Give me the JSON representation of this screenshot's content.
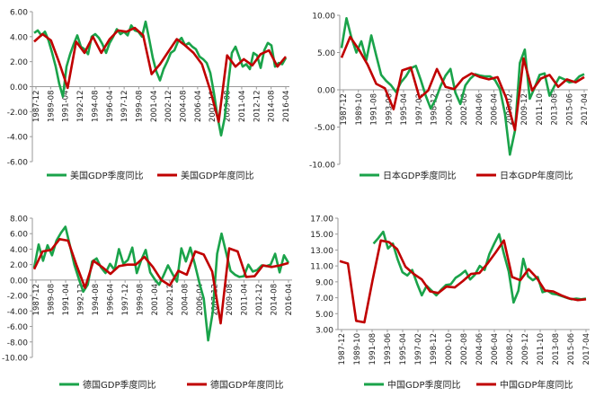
{
  "colors": {
    "quarterly": "#1aa34a",
    "annual": "#c00000",
    "axis": "#999999",
    "text": "#222222"
  },
  "chart_data": [
    {
      "type": "line",
      "ylim": [
        -6,
        6
      ],
      "yticks": [
        "6.00",
        "4.00",
        "2.00",
        "0.00",
        "-2.00",
        "-4.00",
        "-6.00"
      ],
      "xticks": [
        "1987-12",
        "1989-08",
        "1991-04",
        "1992-12",
        "1994-08",
        "1996-04",
        "1997-12",
        "1999-08",
        "2001-04",
        "2002-12",
        "2004-08",
        "2006-04",
        "2007-12",
        "2009-08",
        "2011-04",
        "2012-12",
        "2014-08",
        "2016-04"
      ],
      "series": [
        {
          "name": "美国GDP季度同比",
          "values": [
            4.3,
            4.5,
            4.1,
            4.4,
            3.7,
            2.7,
            1.6,
            0.2,
            -0.8,
            1.6,
            2.6,
            3.4,
            4.1,
            3.2,
            3.0,
            2.6,
            4.0,
            4.2,
            3.9,
            3.4,
            2.7,
            3.5,
            4.0,
            4.6,
            4.2,
            4.4,
            4.1,
            4.9,
            4.5,
            4.4,
            4.0,
            5.2,
            3.8,
            2.3,
            1.2,
            0.5,
            1.4,
            2.0,
            2.7,
            2.9,
            3.6,
            3.9,
            3.3,
            3.5,
            3.2,
            3.0,
            2.4,
            2.2,
            1.9,
            1.1,
            -0.5,
            -2.4,
            -3.9,
            -2.5,
            0.3,
            2.7,
            3.2,
            2.4,
            1.6,
            1.8,
            1.4,
            2.7,
            2.5,
            1.5,
            2.9,
            3.5,
            3.3,
            1.6,
            1.9,
            1.8,
            2.3
          ]
        },
        {
          "name": "美国GDP年度同比",
          "values": [
            3.6,
            4.2,
            3.7,
            1.9,
            -0.1,
            3.6,
            2.7,
            4.0,
            2.7,
            3.8,
            4.5,
            4.4,
            4.7,
            4.1,
            1.0,
            1.8,
            2.8,
            3.8,
            3.3,
            2.7,
            1.8,
            -0.3,
            -2.8,
            2.5,
            1.6,
            2.2,
            1.7,
            2.6,
            2.9,
            1.6,
            2.4
          ]
        }
      ],
      "legend": [
        "美国GDP季度同比",
        "美国GDP年度同比"
      ]
    },
    {
      "type": "line",
      "ylim": [
        -10,
        10
      ],
      "yticks": [
        "10.00",
        "5.00",
        "0.00",
        "-5.00",
        "-10.00"
      ],
      "xticks": [
        "1987-12",
        "1989-10",
        "1991-08",
        "1993-06",
        "1995-04",
        "1997-02",
        "1998-12",
        "2000-10",
        "2002-08",
        "2004-06",
        "2006-04",
        "2008-02",
        "2009-12",
        "2011-10",
        "2013-08",
        "2015-06",
        "2017-04"
      ],
      "series": [
        {
          "name": "日本GDP季度同比",
          "values": [
            5.6,
            9.6,
            7.0,
            5.0,
            6.5,
            4.0,
            7.3,
            4.6,
            2.0,
            1.2,
            0.6,
            -0.3,
            1.0,
            1.8,
            2.9,
            3.2,
            1.3,
            -0.8,
            -2.5,
            -1.3,
            0.5,
            1.9,
            2.8,
            -0.4,
            -1.9,
            0.6,
            1.5,
            2.1,
            1.9,
            1.8,
            1.8,
            1.3,
            0.1,
            -3.2,
            -8.7,
            -5.5,
            3.6,
            5.4,
            -1.2,
            0.3,
            2.0,
            2.2,
            -0.8,
            0.5,
            1.7,
            1.4,
            1.0,
            1.1,
            1.8,
            2.1
          ]
        },
        {
          "name": "日本GDP年度同比",
          "values": [
            4.3,
            7.1,
            5.4,
            3.4,
            0.8,
            0.2,
            -2.6,
            2.6,
            3.0,
            -1.1,
            -0.1,
            2.8,
            0.4,
            0.1,
            1.5,
            2.2,
            1.7,
            1.4,
            1.7,
            -1.1,
            -5.4,
            4.2,
            -0.1,
            1.5,
            2.0,
            0.4,
            1.4,
            1.0,
            1.7
          ]
        }
      ],
      "legend": [
        "日本GDP季度同比",
        "日本GDP年度同比"
      ]
    },
    {
      "type": "line",
      "ylim": [
        -10,
        8
      ],
      "yticks": [
        "8.00",
        "6.00",
        "4.00",
        "2.00",
        "0.00",
        "-2.00",
        "-4.00",
        "-6.00",
        "-8.00",
        "-10.00"
      ],
      "xticks": [
        "1987-12",
        "1989-08",
        "1991-04",
        "1992-12",
        "1994-08",
        "1996-04",
        "1997-12",
        "1999-08",
        "2001-04",
        "2002-12",
        "2004-08",
        "2006-04",
        "2007-12",
        "2009-08",
        "2011-04",
        "2012-12",
        "2014-08",
        "2016-04"
      ],
      "series": [
        {
          "name": "德国GDP季度同比",
          "values": [
            1.6,
            4.6,
            2.5,
            4.5,
            3.2,
            5.1,
            6.1,
            6.9,
            4.5,
            2.0,
            0.2,
            -1.5,
            -0.6,
            2.4,
            2.8,
            1.6,
            0.9,
            2.1,
            1.3,
            4.0,
            2.1,
            2.6,
            4.2,
            0.9,
            2.6,
            3.9,
            1.0,
            0.1,
            -0.6,
            0.6,
            1.9,
            0.8,
            -0.2,
            4.1,
            2.4,
            4.2,
            2.1,
            -0.3,
            -2.4,
            -7.8,
            -4.2,
            3.4,
            6.0,
            3.6,
            1.2,
            0.7,
            0.4,
            0.5,
            2.0,
            1.1,
            1.3,
            1.9,
            1.8,
            2.0,
            3.4,
            1.0,
            3.2,
            2.2
          ]
        },
        {
          "name": "德国GDP年度同比",
          "values": [
            1.4,
            3.7,
            3.9,
            5.3,
            5.1,
            1.9,
            -1.0,
            2.5,
            1.7,
            0.8,
            1.8,
            2.0,
            2.0,
            3.0,
            1.7,
            0.0,
            -0.7,
            1.2,
            0.7,
            3.7,
            3.3,
            1.1,
            -5.6,
            4.1,
            3.7,
            0.4,
            0.5,
            1.9,
            1.7,
            1.9,
            2.2
          ]
        }
      ],
      "legend": [
        "德国GDP季度同比",
        "德国GDP年度同比"
      ]
    },
    {
      "type": "line",
      "ylim": [
        3,
        17
      ],
      "yticks": [
        "17.00",
        "15.00",
        "13.00",
        "11.00",
        "9.00",
        "7.00",
        "5.00",
        "3.00"
      ],
      "xticks": [
        "1987-12",
        "1989-10",
        "1991-08",
        "1993-06",
        "1995-04",
        "1997-02",
        "1998-12",
        "2000-10",
        "2002-08",
        "2004-06",
        "2006-04",
        "2008-02",
        "2009-12",
        "2011-10",
        "2013-08",
        "2015-06",
        "2017-04"
      ],
      "series": [
        {
          "name": "中国GDP季度同比",
          "values": [
            null,
            null,
            null,
            null,
            null,
            null,
            null,
            13.8,
            14.5,
            15.3,
            13.2,
            13.8,
            11.8,
            10.2,
            9.8,
            10.5,
            8.8,
            7.3,
            8.5,
            7.9,
            7.3,
            8.0,
            8.6,
            8.7,
            9.5,
            9.9,
            10.4,
            9.3,
            9.9,
            11.0,
            10.5,
            12.5,
            13.8,
            15.0,
            12.5,
            10.3,
            6.4,
            7.9,
            11.9,
            9.7,
            9.2,
            9.6,
            7.7,
            7.9,
            7.5,
            7.4,
            7.2,
            7.0,
            6.8,
            6.9,
            6.8,
            6.9
          ]
        },
        {
          "name": "中国GDP年度同比",
          "values": [
            11.6,
            11.3,
            4.1,
            3.9,
            9.2,
            14.2,
            14.0,
            13.1,
            10.9,
            10.0,
            9.3,
            7.8,
            7.6,
            8.4,
            8.3,
            9.1,
            10.0,
            10.1,
            11.3,
            12.7,
            14.2,
            9.6,
            9.2,
            10.6,
            9.5,
            7.9,
            7.8,
            7.3,
            6.9,
            6.7,
            6.8
          ]
        }
      ],
      "legend": [
        "中国GDP季度同比",
        "中国GDP年度同比"
      ]
    }
  ]
}
